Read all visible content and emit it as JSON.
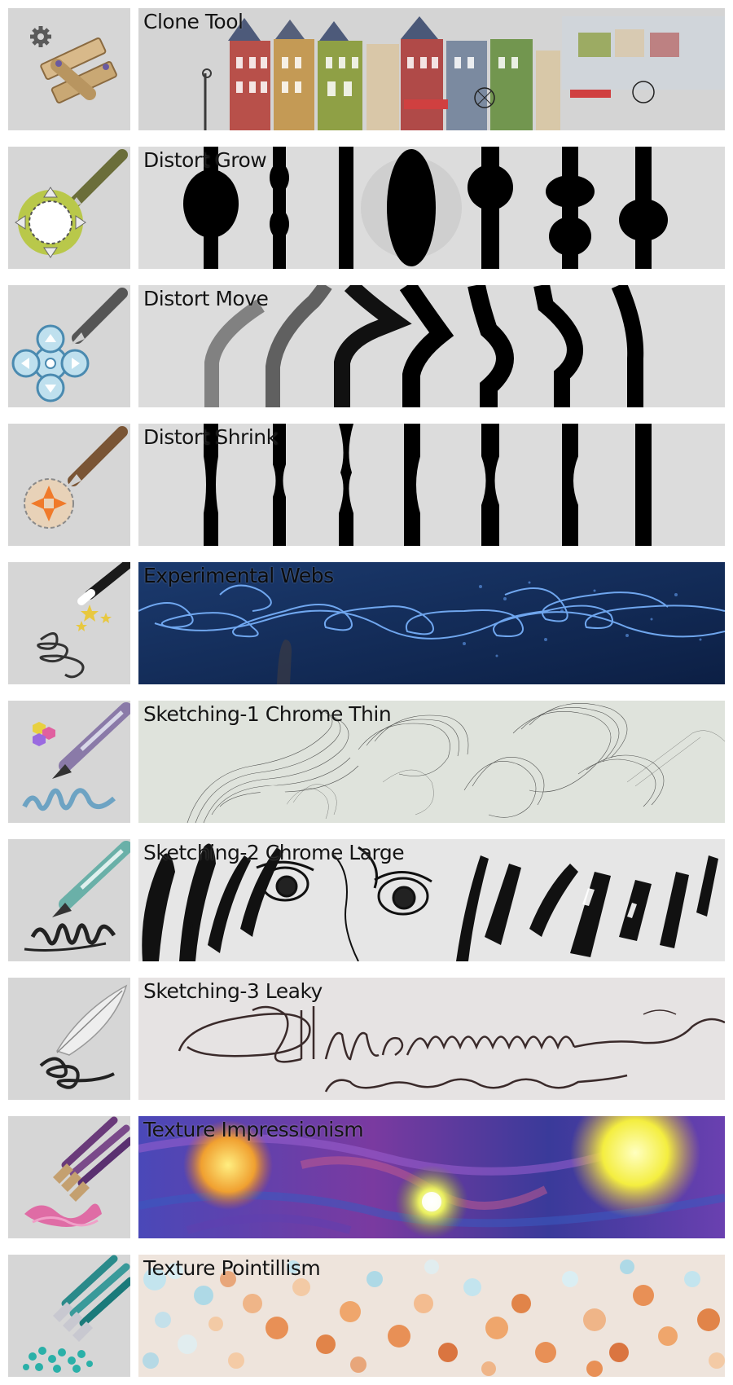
{
  "brushes": [
    {
      "name": "Clone Tool",
      "icon": "clone-stamp-icon"
    },
    {
      "name": "Distort Grow",
      "icon": "distort-grow-icon"
    },
    {
      "name": "Distort Move",
      "icon": "distort-move-icon"
    },
    {
      "name": "Distort Shrink",
      "icon": "distort-shrink-icon"
    },
    {
      "name": "Experimental Webs",
      "icon": "magic-wand-icon"
    },
    {
      "name": "Sketching-1 Chrome Thin",
      "icon": "chrome-pen-icon"
    },
    {
      "name": "Sketching-2 Chrome Large",
      "icon": "chrome-pen-large-icon"
    },
    {
      "name": "Sketching-3 Leaky",
      "icon": "feather-quill-icon"
    },
    {
      "name": "Texture Impressionism",
      "icon": "paintbrushes-icon"
    },
    {
      "name": "Texture Pointillism",
      "icon": "pointillism-brushes-icon"
    }
  ],
  "colors": {
    "tile_bg": "#d6d6d6",
    "preview_bg": "#dcdcdc",
    "webs_bg": "#0f2a55",
    "impressionism_bg": "#4a3aa0",
    "pointillism_accent": "#e8883a"
  }
}
